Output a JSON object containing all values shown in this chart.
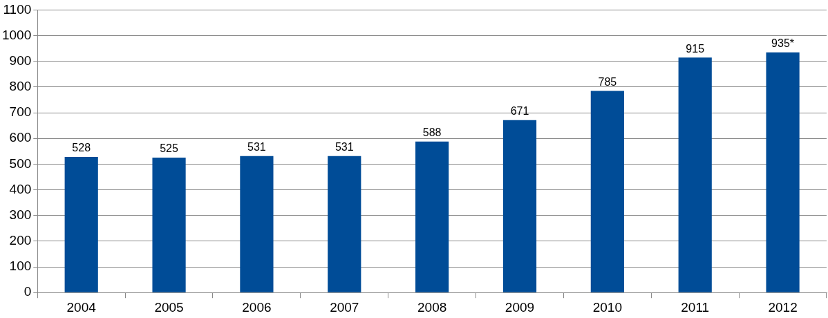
{
  "chart_data": {
    "type": "bar",
    "categories": [
      "2004",
      "2005",
      "2006",
      "2007",
      "2008",
      "2009",
      "2010",
      "2011",
      "2012"
    ],
    "values": [
      528,
      525,
      531,
      531,
      588,
      671,
      785,
      915,
      935
    ],
    "value_labels": [
      "528",
      "525",
      "531",
      "531",
      "588",
      "671",
      "785",
      "915",
      "935*"
    ],
    "color": "#004c97",
    "ylim": [
      0,
      1100
    ],
    "yticks": [
      0,
      100,
      200,
      300,
      400,
      500,
      600,
      700,
      800,
      900,
      1000,
      1100
    ],
    "grid": "y",
    "legend": false
  }
}
